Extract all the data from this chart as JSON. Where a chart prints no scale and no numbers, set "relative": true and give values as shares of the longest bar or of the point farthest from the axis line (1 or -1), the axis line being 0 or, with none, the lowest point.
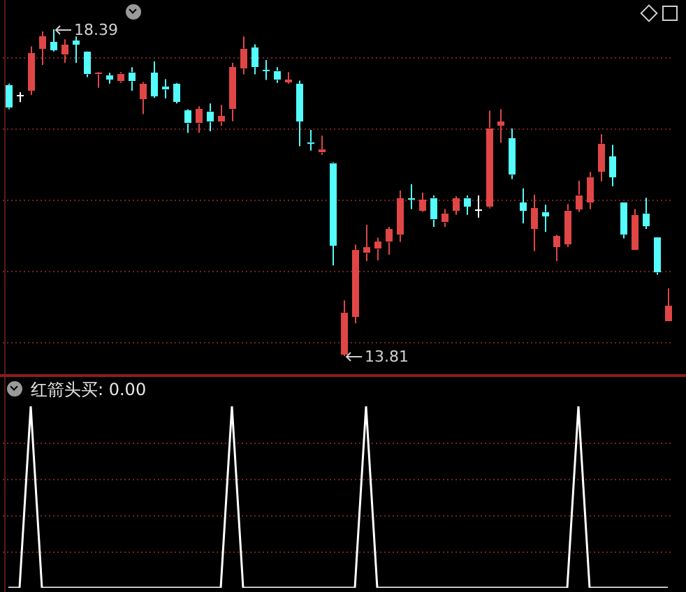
{
  "chart_data": [
    {
      "type": "candlestick",
      "categories": [
        null,
        null,
        null,
        null,
        null,
        null,
        null,
        null,
        null,
        null,
        null,
        null,
        null,
        null,
        null,
        null,
        null,
        null,
        null,
        null,
        null,
        null,
        null,
        null,
        null,
        null,
        null,
        null,
        null,
        null,
        null,
        null,
        null,
        null,
        null,
        null,
        null,
        null,
        null,
        null,
        null,
        null,
        null,
        null,
        null,
        null,
        null,
        null,
        null,
        null,
        null,
        null,
        null,
        null,
        null,
        null,
        null,
        null,
        null,
        null
      ],
      "ohlc": [
        [
          17.61,
          17.63,
          17.27,
          17.29
        ],
        [
          17.47,
          17.51,
          17.37,
          17.47
        ],
        [
          17.53,
          18.15,
          17.47,
          18.05
        ],
        [
          18.12,
          18.36,
          17.89,
          18.29
        ],
        [
          18.21,
          18.39,
          18.08,
          18.1
        ],
        [
          18.03,
          18.25,
          17.92,
          18.17
        ],
        [
          18.23,
          18.29,
          17.92,
          18.18
        ],
        [
          18.07,
          18.08,
          17.72,
          17.76
        ],
        [
          17.76,
          17.79,
          17.57,
          17.78
        ],
        [
          17.74,
          17.78,
          17.63,
          17.69
        ],
        [
          17.66,
          17.79,
          17.64,
          17.77
        ],
        [
          17.79,
          17.86,
          17.53,
          17.66
        ],
        [
          17.42,
          17.65,
          17.2,
          17.63
        ],
        [
          17.78,
          17.94,
          17.43,
          17.46
        ],
        [
          17.59,
          17.69,
          17.42,
          17.54
        ],
        [
          17.63,
          17.64,
          17.35,
          17.38
        ],
        [
          17.25,
          17.27,
          16.94,
          17.07
        ],
        [
          17.07,
          17.31,
          16.94,
          17.27
        ],
        [
          17.24,
          17.35,
          16.96,
          17.09
        ],
        [
          17.09,
          17.33,
          17.04,
          17.18
        ],
        [
          17.27,
          17.92,
          17.1,
          17.86
        ],
        [
          17.84,
          18.29,
          17.76,
          18.12
        ],
        [
          18.13,
          18.18,
          17.76,
          17.86
        ],
        [
          17.82,
          17.96,
          17.68,
          17.81
        ],
        [
          17.81,
          17.86,
          17.64,
          17.68
        ],
        [
          17.65,
          17.79,
          17.63,
          17.68
        ],
        [
          17.63,
          17.67,
          16.75,
          17.1
        ],
        [
          16.81,
          16.98,
          16.69,
          16.8
        ],
        [
          16.66,
          16.9,
          16.63,
          16.71
        ],
        [
          16.52,
          16.53,
          15.08,
          15.36
        ],
        [
          13.83,
          14.59,
          13.81,
          14.42
        ],
        [
          14.36,
          15.37,
          14.27,
          15.3
        ],
        [
          15.25,
          15.65,
          15.14,
          15.33
        ],
        [
          15.31,
          15.47,
          15.15,
          15.41
        ],
        [
          15.41,
          15.62,
          15.23,
          15.59
        ],
        [
          15.51,
          16.13,
          15.41,
          16.02
        ],
        [
          16.02,
          16.22,
          15.87,
          16.0
        ],
        [
          15.85,
          16.1,
          15.83,
          16.0
        ],
        [
          16.03,
          16.06,
          15.62,
          15.72
        ],
        [
          15.68,
          15.87,
          15.62,
          15.81
        ],
        [
          15.85,
          16.05,
          15.79,
          16.02
        ],
        [
          16.03,
          16.06,
          15.79,
          15.91
        ],
        [
          15.87,
          16.06,
          15.75,
          15.87
        ],
        [
          15.9,
          17.25,
          15.88,
          17.01
        ],
        [
          17.04,
          17.27,
          16.8,
          17.09
        ],
        [
          16.86,
          17.0,
          16.29,
          16.35
        ],
        [
          15.96,
          16.16,
          15.67,
          15.85
        ],
        [
          15.6,
          16.07,
          15.28,
          15.88
        ],
        [
          15.83,
          15.93,
          15.55,
          15.77
        ],
        [
          15.34,
          15.51,
          15.14,
          15.49
        ],
        [
          15.38,
          15.94,
          15.34,
          15.85
        ],
        [
          15.87,
          16.27,
          15.83,
          16.07
        ],
        [
          15.96,
          16.39,
          15.87,
          16.32
        ],
        [
          16.4,
          16.92,
          16.26,
          16.79
        ],
        [
          16.6,
          16.77,
          16.19,
          16.32
        ],
        [
          15.96,
          15.96,
          15.46,
          15.51
        ],
        [
          15.29,
          15.87,
          15.29,
          15.79
        ],
        [
          15.81,
          16.03,
          15.59,
          15.64
        ],
        [
          15.47,
          15.47,
          14.95,
          14.98
        ],
        [
          14.29,
          14.76,
          14.29,
          14.51
        ]
      ],
      "colors": [
        "#54fcfc",
        "#ffffff",
        "#e04646",
        "#e04646",
        "#54fcfc",
        "#e04646",
        "#54fcfc",
        "#54fcfc",
        "#e04646",
        "#54fcfc",
        "#e04646",
        "#54fcfc",
        "#e04646",
        "#54fcfc",
        "#54fcfc",
        "#54fcfc",
        "#54fcfc",
        "#e04646",
        "#54fcfc",
        "#e04646",
        "#e04646",
        "#e04646",
        "#54fcfc",
        "#54fcfc",
        "#54fcfc",
        "#e04646",
        "#54fcfc",
        "#54fcfc",
        "#e04646",
        "#54fcfc",
        "#e04646",
        "#e04646",
        "#e04646",
        "#e04646",
        "#e04646",
        "#e04646",
        "#54fcfc",
        "#e04646",
        "#54fcfc",
        "#e04646",
        "#e04646",
        "#54fcfc",
        "#ffffff",
        "#e04646",
        "#e04646",
        "#54fcfc",
        "#54fcfc",
        "#e04646",
        "#54fcfc",
        "#e04646",
        "#e04646",
        "#e04646",
        "#e04646",
        "#e04646",
        "#54fcfc",
        "#54fcfc",
        "#e04646",
        "#54fcfc",
        "#54fcfc",
        "#e04646"
      ],
      "annotations": [
        "18.39",
        "13.81"
      ],
      "ref_lines": [
        {
          "axis": "y",
          "value": 14,
          "color": "#7a2020",
          "line_style": "dotted"
        },
        {
          "axis": "y",
          "value": 15,
          "color": "#7a2020",
          "line_style": "dotted"
        },
        {
          "axis": "y",
          "value": 16,
          "color": "#7a2020",
          "line_style": "dotted"
        },
        {
          "axis": "y",
          "value": 17,
          "color": "#7a2020",
          "line_style": "dotted"
        },
        {
          "axis": "y",
          "value": 18,
          "color": "#7a2020",
          "line_style": "dotted"
        }
      ]
    },
    {
      "type": "line",
      "title": "红箭头买: 0.00",
      "categories": [
        null,
        null,
        null,
        null,
        null,
        null,
        null,
        null,
        null,
        null,
        null,
        null,
        null,
        null,
        null,
        null,
        null,
        null,
        null,
        null,
        null,
        null,
        null,
        null,
        null,
        null,
        null,
        null,
        null,
        null,
        null,
        null,
        null,
        null,
        null,
        null,
        null,
        null,
        null,
        null,
        null,
        null,
        null,
        null,
        null,
        null,
        null,
        null,
        null,
        null,
        null,
        null,
        null,
        null,
        null,
        null,
        null,
        null,
        null,
        null
      ],
      "relative": true,
      "ref_lines": [
        {
          "axis": "y",
          "value": 0.2,
          "color": "#7a2020",
          "line_style": "dotted"
        },
        {
          "axis": "y",
          "value": 0.4,
          "color": "#7a2020",
          "line_style": "dotted"
        },
        {
          "axis": "y",
          "value": 0.6,
          "color": "#7a2020",
          "line_style": "dotted"
        },
        {
          "axis": "y",
          "value": 0.8,
          "color": "#7a2020",
          "line_style": "dotted"
        }
      ],
      "series": [
        {
          "color": "#ffffff",
          "values": [
            0,
            0,
            1,
            0,
            0,
            0,
            0,
            0,
            0,
            0,
            0,
            0,
            0,
            0,
            0,
            0,
            0,
            0,
            0,
            0,
            1,
            0,
            0,
            0,
            0,
            0,
            0,
            0,
            0,
            0,
            0,
            0,
            1,
            0,
            0,
            0,
            0,
            0,
            0,
            0,
            0,
            0,
            0,
            0,
            0,
            0,
            0,
            0,
            0,
            0,
            0,
            1,
            0,
            0,
            0,
            0,
            0,
            0,
            0,
            0
          ]
        }
      ]
    }
  ]
}
